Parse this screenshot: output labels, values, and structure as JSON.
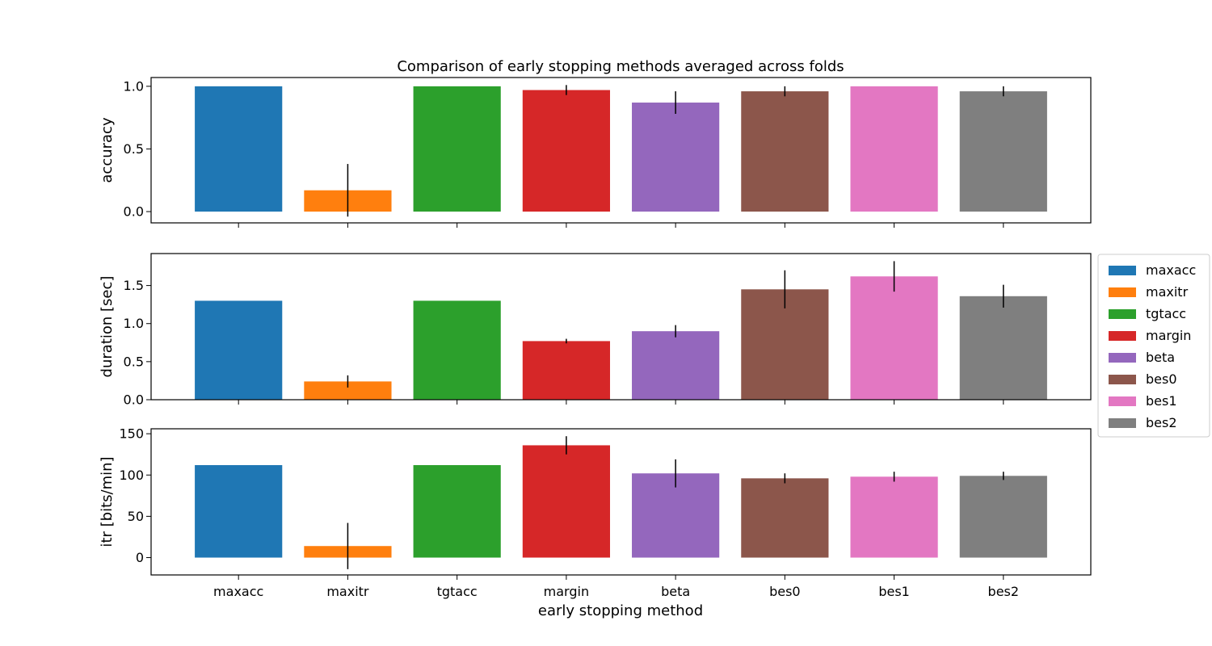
{
  "chart_data": {
    "type": "bar",
    "title": "Comparison of early stopping methods averaged across folds",
    "xlabel": "early stopping method",
    "categories": [
      "maxacc",
      "maxitr",
      "tgtacc",
      "margin",
      "beta",
      "bes0",
      "bes1",
      "bes2"
    ],
    "colors": [
      "#1f77b4",
      "#ff7f0e",
      "#2ca02c",
      "#d62728",
      "#9467bd",
      "#8c564b",
      "#e377c2",
      "#7f7f7f"
    ],
    "legend": {
      "placement": "right",
      "entries": [
        "maxacc",
        "maxitr",
        "tgtacc",
        "margin",
        "beta",
        "bes0",
        "bes1",
        "bes2"
      ]
    },
    "grid": false,
    "shared_x": true,
    "subplots": [
      {
        "ylabel": "accuracy",
        "ylim": [
          -0.09,
          1.07
        ],
        "yticks": [
          0.0,
          0.5,
          1.0
        ],
        "ytick_labels": [
          "0.0",
          "0.5",
          "1.0"
        ],
        "values": [
          1.0,
          0.17,
          1.0,
          0.97,
          0.87,
          0.96,
          1.0,
          0.96
        ],
        "errors": [
          0.0,
          0.21,
          0.0,
          0.04,
          0.09,
          0.04,
          0.0,
          0.04
        ]
      },
      {
        "ylabel": "duration [sec]",
        "ylim": [
          0.0,
          1.92
        ],
        "yticks": [
          0.0,
          0.5,
          1.0,
          1.5
        ],
        "ytick_labels": [
          "0.0",
          "0.5",
          "1.0",
          "1.5"
        ],
        "values": [
          1.3,
          0.24,
          1.3,
          0.77,
          0.9,
          1.45,
          1.62,
          1.36
        ],
        "errors": [
          0.0,
          0.08,
          0.0,
          0.03,
          0.08,
          0.25,
          0.2,
          0.15
        ]
      },
      {
        "ylabel": "itr [bits/min]",
        "ylim": [
          -21,
          156
        ],
        "yticks": [
          0,
          50,
          100,
          150
        ],
        "ytick_labels": [
          "0",
          "50",
          "100",
          "150"
        ],
        "values": [
          112,
          14,
          112,
          136,
          102,
          96,
          98,
          99
        ],
        "errors": [
          0,
          28,
          0,
          11,
          17,
          6,
          6,
          5
        ]
      }
    ]
  }
}
